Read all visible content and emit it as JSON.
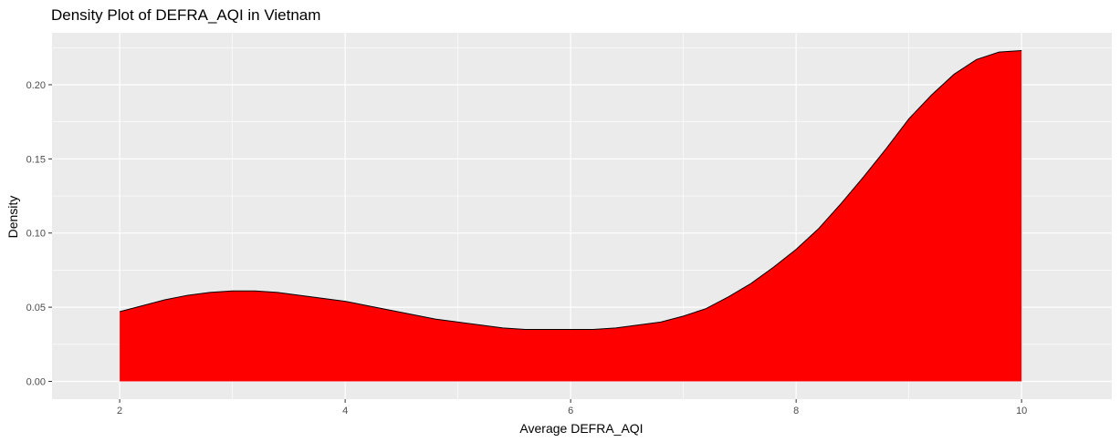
{
  "chart_data": {
    "type": "area",
    "title": "Density Plot of DEFRA_AQI in Vietnam",
    "xlabel": "Average DEFRA_AQI",
    "ylabel": "Density",
    "xlim": [
      1.4,
      10.8
    ],
    "ylim": [
      -0.012,
      0.235
    ],
    "x_ticks": [
      2,
      4,
      6,
      8,
      10
    ],
    "x_tick_labels": [
      "2",
      "4",
      "6",
      "8",
      "10"
    ],
    "y_ticks": [
      0.0,
      0.05,
      0.1,
      0.15,
      0.2
    ],
    "y_tick_labels": [
      "0.00",
      "0.05",
      "0.10",
      "0.15",
      "0.20"
    ],
    "grid": true,
    "legend": "none",
    "panel_color": "#EBEBEB",
    "grid_color": "#FFFFFF",
    "fill_color": "#FF0000",
    "line_color": "#000000",
    "series": [
      {
        "x": [
          2.0,
          2.2,
          2.4,
          2.6,
          2.8,
          3.0,
          3.2,
          3.4,
          3.6,
          3.8,
          4.0,
          4.2,
          4.4,
          4.6,
          4.8,
          5.0,
          5.2,
          5.4,
          5.6,
          5.8,
          6.0,
          6.2,
          6.4,
          6.6,
          6.8,
          7.0,
          7.2,
          7.4,
          7.6,
          7.8,
          8.0,
          8.2,
          8.4,
          8.6,
          8.8,
          9.0,
          9.2,
          9.4,
          9.6,
          9.8,
          10.0
        ],
        "y": [
          0.047,
          0.051,
          0.055,
          0.058,
          0.06,
          0.061,
          0.061,
          0.06,
          0.058,
          0.056,
          0.054,
          0.051,
          0.048,
          0.045,
          0.042,
          0.04,
          0.038,
          0.036,
          0.035,
          0.035,
          0.035,
          0.035,
          0.036,
          0.038,
          0.04,
          0.044,
          0.049,
          0.057,
          0.066,
          0.077,
          0.089,
          0.103,
          0.12,
          0.138,
          0.157,
          0.177,
          0.193,
          0.207,
          0.217,
          0.222,
          0.223
        ]
      }
    ]
  }
}
